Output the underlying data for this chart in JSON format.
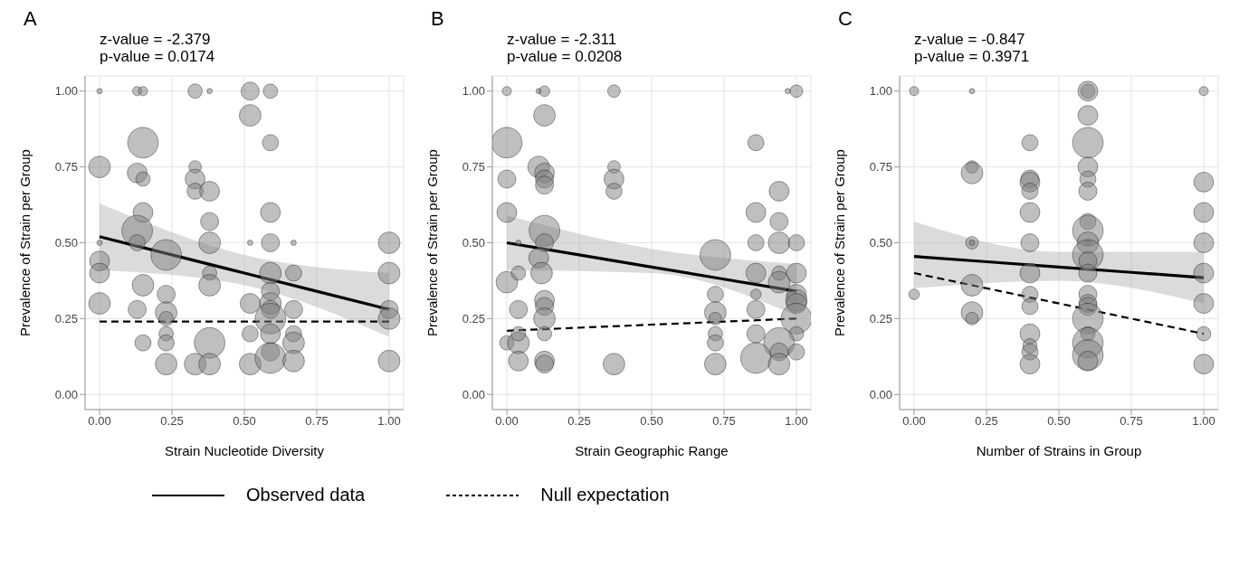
{
  "chart_data": [
    {
      "type": "bubble",
      "title": "A",
      "annotations": [
        "z-value = -2.379",
        "p-value = 0.0174"
      ],
      "xlabel": "Strain Nucleotide Diversity",
      "ylabel": "Prevalence of Strain per Group",
      "xlim": [
        -0.05,
        1.05
      ],
      "ylim": [
        -0.05,
        1.05
      ],
      "xticks": [
        {
          "value": 0,
          "label": "0.00"
        },
        {
          "value": 0.25,
          "label": "0.25"
        },
        {
          "value": 0.5,
          "label": "0.50"
        },
        {
          "value": 0.75,
          "label": "0.75"
        },
        {
          "value": 1,
          "label": "1.00"
        }
      ],
      "yticks": [
        {
          "value": 0,
          "label": "0.00"
        },
        {
          "value": 0.25,
          "label": "0.25"
        },
        {
          "value": 0.5,
          "label": "0.50"
        },
        {
          "value": 0.75,
          "label": "0.75"
        },
        {
          "value": 1,
          "label": "1.00"
        }
      ],
      "grid": true,
      "legend": "bottom",
      "series": [
        {
          "color": "#808080",
          "x": [
            0,
            0.13,
            0.15,
            0.33,
            0.38,
            0.52,
            0.59,
            0.52,
            0.59,
            0.15,
            0,
            0.13,
            0.15,
            0.33,
            0.33,
            0.33,
            0.38,
            0.15,
            0.59,
            0.38,
            0.13,
            0,
            0.13,
            0.38,
            0.52,
            0.59,
            0.67,
            1,
            0.23,
            0,
            0,
            1,
            0.38,
            0.59,
            0.67,
            0.15,
            0.38,
            0.23,
            0.59,
            0.59,
            0.59,
            0,
            0.13,
            0.23,
            0.52,
            0.67,
            1,
            0.23,
            0.59,
            1,
            0.23,
            0.52,
            0.59,
            0.67,
            0.15,
            0.23,
            0.38,
            0.67,
            0.59,
            0.23,
            0.33,
            0.38,
            0.52,
            0.59,
            0.67,
            1
          ],
          "values": [
            1,
            1,
            1,
            1,
            1,
            1,
            1,
            0.92,
            0.83,
            0.83,
            0.75,
            0.73,
            0.71,
            0.75,
            0.71,
            0.67,
            0.67,
            0.6,
            0.6,
            0.57,
            0.54,
            0.5,
            0.5,
            0.5,
            0.5,
            0.5,
            0.5,
            0.5,
            0.46,
            0.44,
            0.4,
            0.4,
            0.4,
            0.4,
            0.4,
            0.36,
            0.36,
            0.33,
            0.34,
            0.3,
            0.28,
            0.3,
            0.28,
            0.27,
            0.3,
            0.28,
            0.28,
            0.25,
            0.25,
            0.25,
            0.2,
            0.2,
            0.2,
            0.2,
            0.17,
            0.17,
            0.17,
            0.17,
            0.14,
            0.1,
            0.1,
            0.1,
            0.1,
            0.12,
            0.11,
            0.11
          ],
          "sizes": [
            0.03,
            0.09,
            0.09,
            0.22,
            0.03,
            0.35,
            0.22,
            0.5,
            0.28,
            1,
            0.5,
            0.42,
            0.22,
            0.17,
            0.42,
            0.28,
            0.42,
            0.42,
            0.42,
            0.35,
            1,
            0.03,
            0.28,
            0.5,
            0.03,
            0.35,
            0.03,
            0.5,
            1,
            0.42,
            0.42,
            0.5,
            0.22,
            0.5,
            0.28,
            0.5,
            0.5,
            0.35,
            0.35,
            0.5,
            0.35,
            0.5,
            0.35,
            0.5,
            0.42,
            0.35,
            0.35,
            0.22,
            1,
            0.5,
            0.22,
            0.28,
            0.42,
            0.28,
            0.28,
            0.28,
            1,
            0.5,
            0.35,
            0.5,
            0.5,
            0.5,
            0.5,
            1,
            0.5,
            0.5
          ]
        },
        {
          "type": "line",
          "name": "Observed data",
          "color": "#000000",
          "line_style": "solid",
          "x": [
            0,
            0.5,
            1
          ],
          "values": [
            0.52,
            0.4,
            0.28
          ],
          "lower": [
            0.41,
            0.36,
            0.19
          ],
          "upper": [
            0.63,
            0.46,
            0.4
          ]
        },
        {
          "type": "line",
          "name": "Null expectation",
          "color": "#000000",
          "line_style": "dashed",
          "x": [
            0,
            1
          ],
          "values": [
            0.24,
            0.24
          ]
        }
      ]
    },
    {
      "type": "bubble",
      "title": "B",
      "annotations": [
        "z-value = -2.311",
        "p-value = 0.0208"
      ],
      "xlabel": "Strain Geographic Range",
      "ylabel": "Prevalence of Strain per Group",
      "xlim": [
        -0.05,
        1.05
      ],
      "ylim": [
        -0.05,
        1.05
      ],
      "xticks": [
        {
          "value": 0,
          "label": "0.00"
        },
        {
          "value": 0.25,
          "label": "0.25"
        },
        {
          "value": 0.5,
          "label": "0.50"
        },
        {
          "value": 0.75,
          "label": "0.75"
        },
        {
          "value": 1,
          "label": "1.00"
        }
      ],
      "yticks": [
        {
          "value": 0,
          "label": "0.00"
        },
        {
          "value": 0.25,
          "label": "0.25"
        },
        {
          "value": 0.5,
          "label": "0.50"
        },
        {
          "value": 0.75,
          "label": "0.75"
        },
        {
          "value": 1,
          "label": "1.00"
        }
      ],
      "grid": true,
      "series": [
        {
          "color": "#808080",
          "x": [
            0,
            0.11,
            0.13,
            0.37,
            0.97,
            1,
            0.13,
            0,
            0.86,
            0.11,
            0.13,
            0.13,
            0,
            0.13,
            0.37,
            0.37,
            0.37,
            0.94,
            0,
            0.86,
            0.94,
            0.13,
            0.13,
            0.04,
            0.86,
            0.94,
            1,
            0.72,
            0.11,
            0,
            0.04,
            0.12,
            0.86,
            0.94,
            1,
            0.94,
            0.72,
            0.86,
            1,
            1,
            1,
            0.04,
            0.13,
            0.13,
            0.72,
            0.86,
            0.13,
            0.72,
            1,
            0,
            0.04,
            0.04,
            0.13,
            0.72,
            0.86,
            1,
            0.72,
            0.94,
            0.94,
            1,
            0.04,
            0.13,
            0.13,
            0.37,
            0.72,
            0.86,
            0.94
          ],
          "values": [
            1,
            1,
            1,
            1,
            1,
            1,
            0.92,
            0.83,
            0.83,
            0.75,
            0.73,
            0.71,
            0.71,
            0.69,
            0.75,
            0.71,
            0.67,
            0.67,
            0.6,
            0.6,
            0.57,
            0.54,
            0.5,
            0.5,
            0.5,
            0.5,
            0.5,
            0.46,
            0.45,
            0.37,
            0.4,
            0.4,
            0.4,
            0.4,
            0.4,
            0.37,
            0.33,
            0.33,
            0.33,
            0.31,
            0.3,
            0.28,
            0.31,
            0.29,
            0.27,
            0.28,
            0.25,
            0.25,
            0.25,
            0.17,
            0.17,
            0.2,
            0.2,
            0.2,
            0.2,
            0.2,
            0.17,
            0.17,
            0.14,
            0.14,
            0.11,
            0.11,
            0.1,
            0.1,
            0.1,
            0.12,
            0.1
          ],
          "sizes": [
            0.09,
            0.03,
            0.12,
            0.17,
            0.03,
            0.17,
            0.5,
            1,
            0.28,
            0.5,
            0.42,
            0.35,
            0.35,
            0.35,
            0.17,
            0.42,
            0.28,
            0.42,
            0.42,
            0.42,
            0.35,
            1,
            0.35,
            0.03,
            0.28,
            0.5,
            0.28,
            1,
            0.42,
            0.5,
            0.22,
            0.5,
            0.42,
            0.22,
            0.42,
            0.5,
            0.28,
            0.12,
            0.42,
            0.5,
            0.42,
            0.35,
            0.42,
            0.35,
            0.5,
            0.35,
            0.5,
            0.17,
            1,
            0.22,
            0.5,
            0.22,
            0.22,
            0.22,
            0.35,
            0.22,
            0.28,
            1,
            0.35,
            0.28,
            0.42,
            0.42,
            0.35,
            0.5,
            0.5,
            1,
            0.5
          ]
        },
        {
          "type": "line",
          "color": "#000000",
          "line_style": "solid",
          "x": [
            0,
            0.5,
            1
          ],
          "values": [
            0.5,
            0.42,
            0.34
          ],
          "lower": [
            0.41,
            0.4,
            0.26
          ],
          "upper": [
            0.59,
            0.48,
            0.43
          ]
        },
        {
          "type": "line",
          "color": "#000000",
          "line_style": "dashed",
          "x": [
            0,
            1
          ],
          "values": [
            0.21,
            0.25
          ]
        }
      ]
    },
    {
      "type": "bubble",
      "title": "C",
      "annotations": [
        "z-value = -0.847",
        "p-value = 0.3971"
      ],
      "xlabel": "Number of Strains in Group",
      "ylabel": "Prevalence of Strain per Group",
      "xlim": [
        -0.05,
        1.05
      ],
      "ylim": [
        -0.05,
        1.05
      ],
      "xticks": [
        {
          "value": 0,
          "label": "0.00"
        },
        {
          "value": 0.25,
          "label": "0.25"
        },
        {
          "value": 0.5,
          "label": "0.50"
        },
        {
          "value": 0.75,
          "label": "0.75"
        },
        {
          "value": 1,
          "label": "1.00"
        }
      ],
      "yticks": [
        {
          "value": 0,
          "label": "0.00"
        },
        {
          "value": 0.25,
          "label": "0.25"
        },
        {
          "value": 0.5,
          "label": "0.50"
        },
        {
          "value": 0.75,
          "label": "0.75"
        },
        {
          "value": 1,
          "label": "1.00"
        }
      ],
      "grid": true,
      "series": [
        {
          "color": "#808080",
          "x": [
            0,
            0,
            0.2,
            0.2,
            0.2,
            0.2,
            0.2,
            0.2,
            0.2,
            0.2,
            0.4,
            0.4,
            0.4,
            0.4,
            0.4,
            0.4,
            0.4,
            0.4,
            0.4,
            0.4,
            0.4,
            0.4,
            0.4,
            0.6,
            0.6,
            0.6,
            0.6,
            0.6,
            0.6,
            0.6,
            0.6,
            0.6,
            0.6,
            0.6,
            0.6,
            0.6,
            0.6,
            0.6,
            0.6,
            0.6,
            0.6,
            0.6,
            0.6,
            0.6,
            0.6,
            1,
            1,
            1,
            1,
            1,
            1,
            1,
            1
          ],
          "values": [
            1,
            0.33,
            1,
            0.75,
            0.73,
            0.5,
            0.5,
            0.36,
            0.27,
            0.25,
            0.83,
            0.71,
            0.7,
            0.67,
            0.6,
            0.5,
            0.4,
            0.33,
            0.29,
            0.2,
            0.16,
            0.14,
            0.1,
            1,
            1,
            0.92,
            0.83,
            0.75,
            0.71,
            0.67,
            0.57,
            0.54,
            0.5,
            0.5,
            0.46,
            0.44,
            0.4,
            0.33,
            0.3,
            0.29,
            0.25,
            0.2,
            0.17,
            0.13,
            0.11,
            1,
            0.7,
            0.6,
            0.5,
            0.4,
            0.3,
            0.2,
            0.1
          ],
          "sizes": [
            0.09,
            0.12,
            0.03,
            0.17,
            0.5,
            0.17,
            0.03,
            0.5,
            0.5,
            0.17,
            0.28,
            0.35,
            0.42,
            0.28,
            0.42,
            0.35,
            0.42,
            0.28,
            0.28,
            0.42,
            0.22,
            0.28,
            0.42,
            0.22,
            0.42,
            0.42,
            1,
            0.42,
            0.28,
            0.35,
            0.28,
            1,
            0.03,
            0.5,
            1,
            0.35,
            0.35,
            0.35,
            0.35,
            0.35,
            1,
            0.22,
            1,
            1,
            0.42,
            0.09,
            0.42,
            0.42,
            0.42,
            0.42,
            0.42,
            0.22,
            0.42
          ]
        },
        {
          "type": "line",
          "color": "#000000",
          "line_style": "solid",
          "x": [
            0,
            0.5,
            1
          ],
          "values": [
            0.455,
            0.42,
            0.385
          ],
          "lower": [
            0.35,
            0.375,
            0.3
          ],
          "upper": [
            0.57,
            0.47,
            0.47
          ]
        },
        {
          "type": "line",
          "color": "#000000",
          "line_style": "dashed",
          "x": [
            0,
            1
          ],
          "values": [
            0.4,
            0.2
          ]
        }
      ]
    }
  ]
}
